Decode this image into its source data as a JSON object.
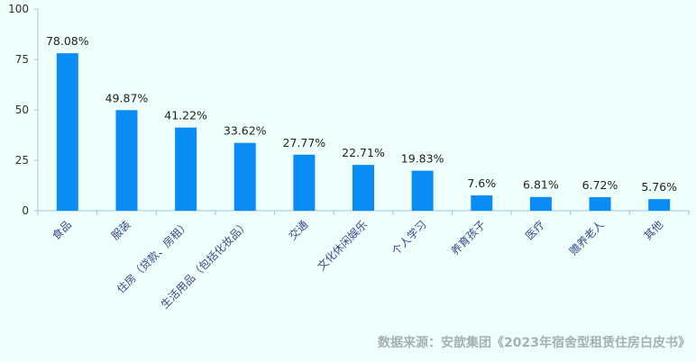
{
  "chart_data": {
    "type": "bar",
    "title": "",
    "xlabel": "",
    "ylabel": "",
    "categories": [
      "食品",
      "服装",
      "住房（贷款、房租）",
      "生活用品（包括化妆品）",
      "交通",
      "文化休闲娱乐",
      "个人学习",
      "养育孩子",
      "医疗",
      "赡养老人",
      "其他"
    ],
    "values": [
      78.08,
      49.87,
      41.22,
      33.62,
      27.77,
      22.71,
      19.83,
      7.6,
      6.81,
      6.72,
      5.76
    ],
    "value_labels": [
      "78.08%",
      "49.87%",
      "41.22%",
      "33.62%",
      "27.77%",
      "22.71%",
      "19.83%",
      "7.6%",
      "6.81%",
      "6.72%",
      "5.76%"
    ],
    "ylim": [
      0,
      100
    ],
    "yticks": [
      "0",
      "25",
      "50",
      "75",
      "100"
    ],
    "grid": false,
    "bar_color": "#0a8cf5"
  },
  "source_note": "数据来源：安歆集团《2023年宿舍型租赁住房白皮书》"
}
